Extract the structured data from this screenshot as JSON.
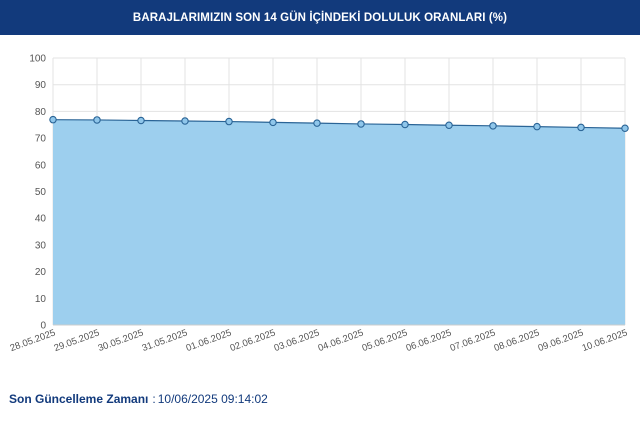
{
  "header": {
    "title": "BARAJLARIMIZIN SON 14 GÜN İÇİNDEKİ DOLULUK ORANLARI (%)"
  },
  "footer": {
    "label": "Son Güncelleme Zamanı",
    "separator": ":",
    "value": "10/06/2025 09:14:02"
  },
  "colors": {
    "header_bg": "#123a7c",
    "area_fill": "#9dcfee",
    "line": "#2a6496",
    "marker": "#8fc6ea",
    "text": "#123a7c"
  },
  "chart_data": {
    "type": "area",
    "title": "BARAJLARIMIZIN SON 14 GÜN İÇİNDEKİ DOLULUK ORANLARI (%)",
    "xlabel": "",
    "ylabel": "",
    "ylim": [
      0,
      100
    ],
    "yticks": [
      0,
      10,
      20,
      30,
      40,
      50,
      60,
      70,
      80,
      90,
      100
    ],
    "grid": true,
    "categories": [
      "28.05.2025",
      "29.05.2025",
      "30.05.2025",
      "31.05.2025",
      "01.06.2025",
      "02.06.2025",
      "03.06.2025",
      "04.06.2025",
      "05.06.2025",
      "06.06.2025",
      "07.06.2025",
      "08.06.2025",
      "09.06.2025",
      "10.06.2025"
    ],
    "series": [
      {
        "values": [
          76.9,
          76.8,
          76.6,
          76.4,
          76.2,
          75.9,
          75.6,
          75.3,
          75.1,
          74.8,
          74.6,
          74.3,
          74.0,
          73.7
        ]
      }
    ]
  }
}
